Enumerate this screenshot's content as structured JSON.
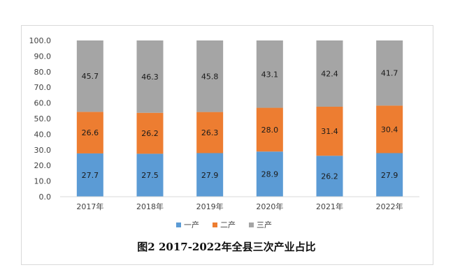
{
  "chart_data": {
    "type": "bar",
    "stacked": true,
    "title": "图2 2017-2022年全县三次产业占比",
    "categories": [
      "2017年",
      "2018年",
      "2019年",
      "2020年",
      "2021年",
      "2022年"
    ],
    "series": [
      {
        "name": "一产",
        "color": "#5b9bd5",
        "values": [
          27.7,
          27.5,
          27.9,
          28.9,
          26.2,
          27.9
        ]
      },
      {
        "name": "二产",
        "color": "#ed7d31",
        "values": [
          26.6,
          26.2,
          26.3,
          28.0,
          31.4,
          30.4
        ]
      },
      {
        "name": "三产",
        "color": "#a5a5a5",
        "values": [
          45.7,
          46.3,
          45.8,
          43.1,
          42.4,
          41.7
        ]
      }
    ],
    "ylim": [
      0,
      100
    ],
    "yticks": [
      "0.0",
      "10.0",
      "20.0",
      "30.0",
      "40.0",
      "50.0",
      "60.0",
      "70.0",
      "80.0",
      "90.0",
      "100.0"
    ],
    "legend_position": "bottom",
    "grid": false
  }
}
